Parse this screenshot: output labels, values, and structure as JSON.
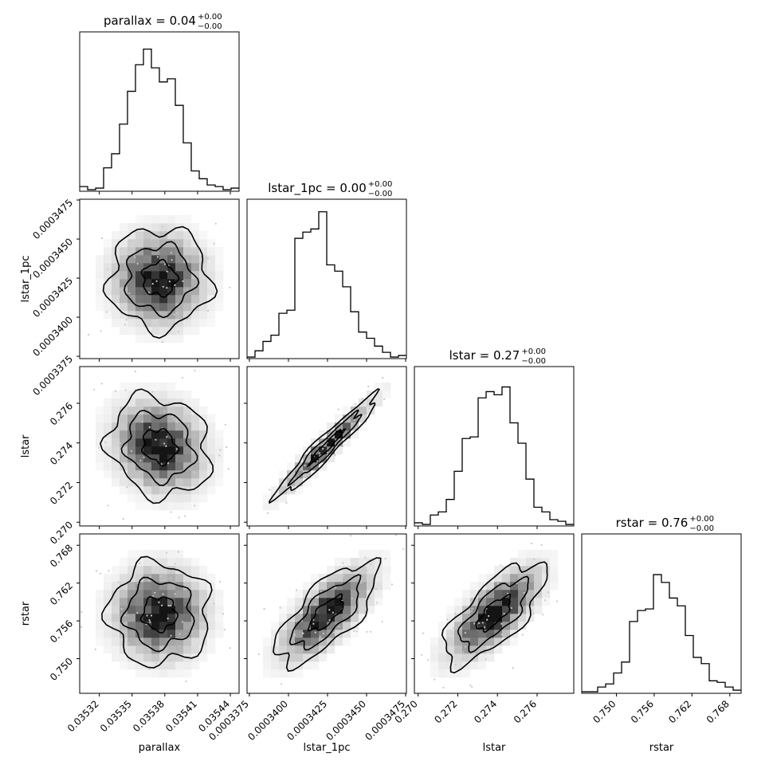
{
  "chart_data": {
    "type": "corner",
    "parameters": [
      "parallax",
      "lstar_1pc",
      "lstar",
      "rstar"
    ],
    "titles": [
      {
        "text": "parallax = 0.04",
        "sup": "+0.00",
        "sub": "−0.00"
      },
      {
        "text": "lstar_1pc = 0.00",
        "sup": "+0.00",
        "sub": "−0.00"
      },
      {
        "text": "lstar = 0.27",
        "sup": "+0.00",
        "sub": "−0.00"
      },
      {
        "text": "rstar = 0.76",
        "sup": "+0.00",
        "sub": "−0.00"
      }
    ],
    "axis_labels": {
      "x": [
        "parallax",
        "lstar_1pc",
        "lstar",
        "rstar"
      ],
      "y": [
        "lstar_1pc",
        "lstar",
        "rstar"
      ]
    },
    "ranges": {
      "parallax": [
        0.035302,
        0.035448
      ],
      "lstar_1pc": [
        0.00033735,
        0.00034755
      ],
      "lstar": [
        0.26981,
        0.27785
      ],
      "rstar": [
        0.7445,
        0.7698
      ]
    },
    "ticks": {
      "parallax": {
        "values": [
          0.03532,
          0.03535,
          0.03538,
          0.03541,
          0.03544
        ],
        "labels": [
          "0.03532",
          "0.03535",
          "0.03538",
          "0.03541",
          "0.03544"
        ]
      },
      "lstar_1pc": {
        "values": [
          0.0003375,
          0.00034,
          0.0003425,
          0.000345,
          0.0003475
        ],
        "labels": [
          "0.0003375",
          "0.0003400",
          "0.0003425",
          "0.0003450",
          "0.0003475"
        ]
      },
      "lstar": {
        "values": [
          0.27,
          0.272,
          0.274,
          0.276
        ],
        "labels": [
          "0.270",
          "0.272",
          "0.274",
          "0.276"
        ]
      },
      "rstar": {
        "values": [
          0.75,
          0.756,
          0.762,
          0.768
        ],
        "labels": [
          "0.750",
          "0.756",
          "0.762",
          "0.768"
        ]
      }
    },
    "histograms": [
      {
        "param": "parallax",
        "counts": [
          0.03,
          0.01,
          0.02,
          0.15,
          0.24,
          0.43,
          0.64,
          0.81,
          0.91,
          0.79,
          0.7,
          0.72,
          0.55,
          0.31,
          0.13,
          0.08,
          0.04,
          0.03,
          0.01,
          0.02
        ]
      },
      {
        "param": "lstar_1pc",
        "counts": [
          0.01,
          0.05,
          0.11,
          0.15,
          0.29,
          0.31,
          0.77,
          0.81,
          0.83,
          0.94,
          0.6,
          0.56,
          0.46,
          0.3,
          0.17,
          0.13,
          0.08,
          0.04,
          0.01,
          0.02
        ]
      },
      {
        "param": "lstar",
        "counts": [
          0.02,
          0.01,
          0.07,
          0.09,
          0.17,
          0.35,
          0.56,
          0.57,
          0.82,
          0.86,
          0.84,
          0.89,
          0.66,
          0.53,
          0.3,
          0.12,
          0.09,
          0.04,
          0.03,
          0.01
        ]
      },
      {
        "param": "rstar",
        "counts": [
          0.01,
          0.01,
          0.04,
          0.06,
          0.13,
          0.2,
          0.46,
          0.53,
          0.54,
          0.76,
          0.71,
          0.61,
          0.56,
          0.37,
          0.23,
          0.19,
          0.08,
          0.07,
          0.04,
          0.02
        ]
      }
    ],
    "correlations": [
      {
        "x": "parallax",
        "y": "lstar_1pc",
        "rho": 0.0
      },
      {
        "x": "parallax",
        "y": "lstar",
        "rho": -0.15
      },
      {
        "x": "lstar_1pc",
        "y": "lstar",
        "rho": 0.96
      },
      {
        "x": "parallax",
        "y": "rstar",
        "rho": 0.0
      },
      {
        "x": "lstar_1pc",
        "y": "rstar",
        "rho": 0.72
      },
      {
        "x": "lstar",
        "y": "rstar",
        "rho": 0.72
      }
    ],
    "contour_levels": [
      0.5,
      1.0,
      1.5
    ],
    "grid": false,
    "legend": "none"
  }
}
